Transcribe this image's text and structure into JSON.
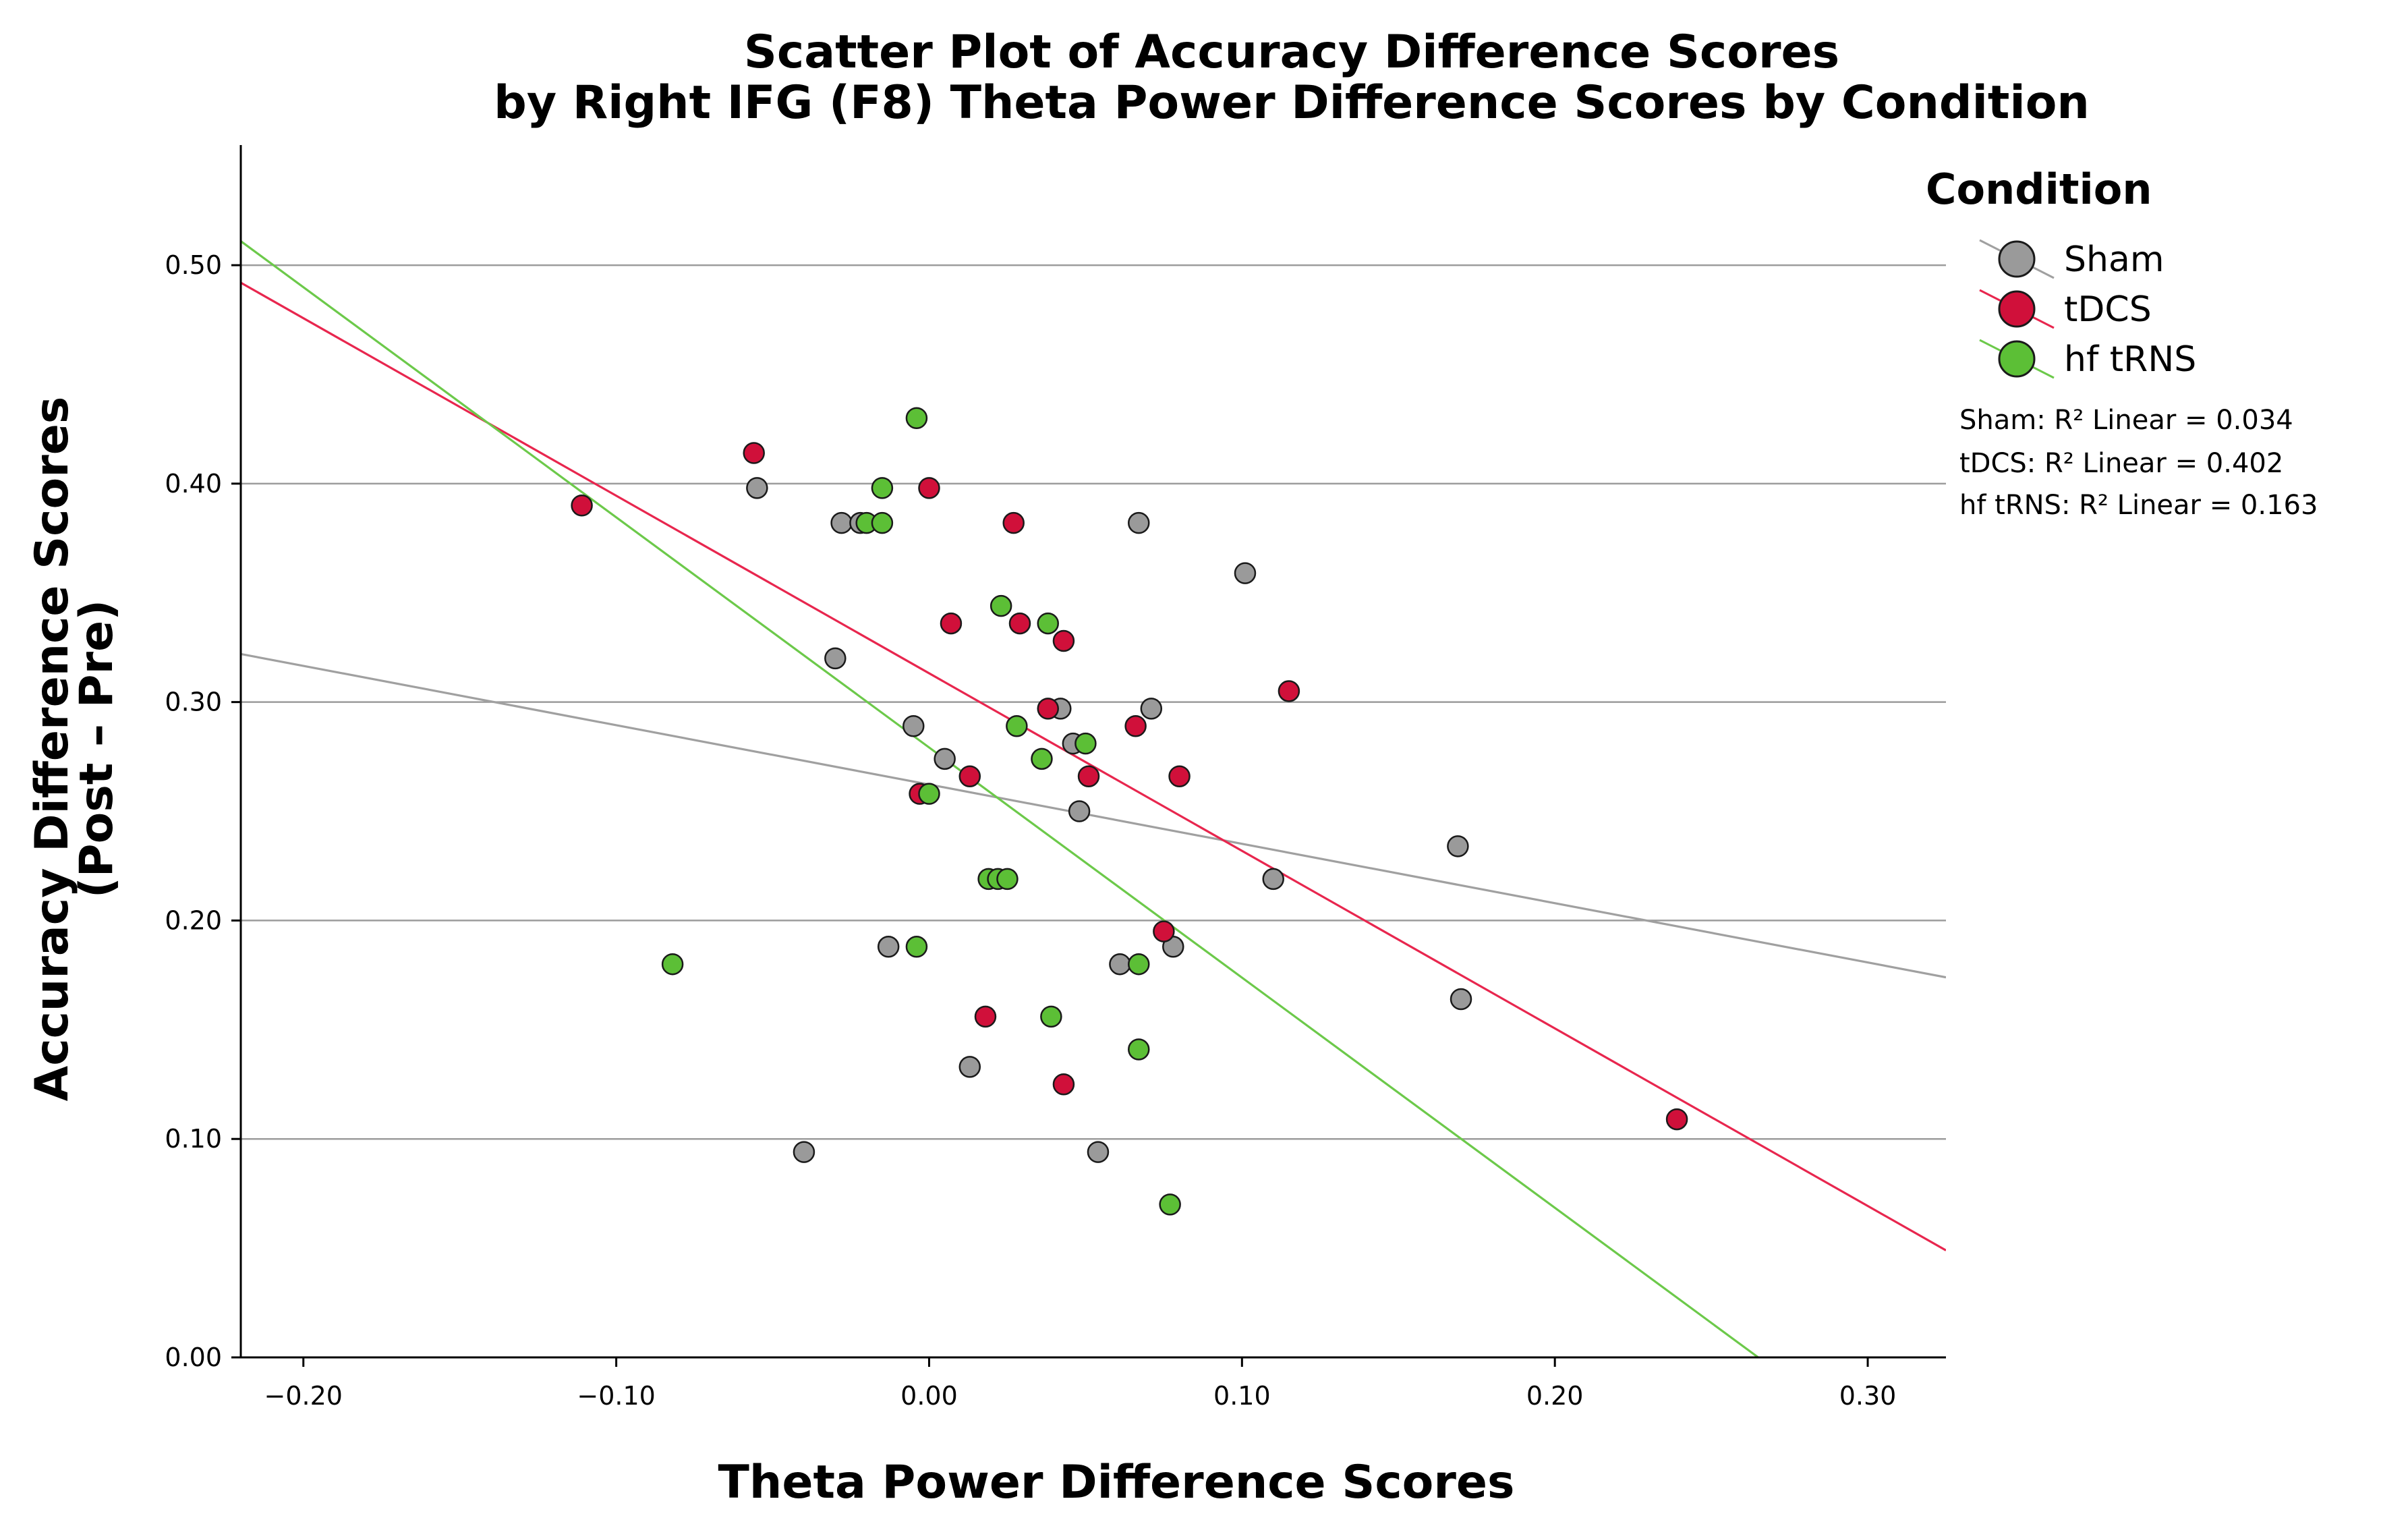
{
  "chart_data": {
    "type": "scatter",
    "title": [
      "Scatter Plot of Accuracy Difference Scores",
      "by Right IFG (F8) Theta Power Difference Scores by Condition"
    ],
    "xlabel": "Theta Power Difference Scores",
    "ylabel": [
      "Accuracy Difference Scores",
      "(Post – Pre)"
    ],
    "xlim": [
      -0.22,
      0.325
    ],
    "ylim": [
      0.0,
      0.555
    ],
    "xticks": [
      -0.2,
      -0.1,
      0.0,
      0.1,
      0.2,
      0.3
    ],
    "xtick_labels": [
      "−0.20",
      "−0.10",
      "0.00",
      "0.10",
      "0.20",
      "0.30"
    ],
    "yticks": [
      0.0,
      0.1,
      0.2,
      0.3,
      0.4,
      0.5
    ],
    "ytick_labels": [
      "0.00",
      "0.10",
      "0.20",
      "0.30",
      "0.40",
      "0.50"
    ],
    "gridlines": "horizontal",
    "legend": {
      "title": "Condition",
      "placement": "right",
      "r2_labels": [
        "Sham: R² Linear = 0.034",
        "tDCS: R² Linear = 0.402",
        "hf tRNS: R² Linear = 0.163"
      ]
    },
    "series": [
      {
        "name": "Sham",
        "color": "#9a9a9a",
        "line_color": "#a0a0a0",
        "fit": {
          "x": [
            -0.22,
            0.325
          ],
          "y": [
            0.322,
            0.174
          ]
        },
        "points": [
          [
            -0.055,
            0.398
          ],
          [
            -0.028,
            0.382
          ],
          [
            -0.022,
            0.382
          ],
          [
            -0.03,
            0.32
          ],
          [
            -0.04,
            0.094
          ],
          [
            -0.013,
            0.188
          ],
          [
            -0.005,
            0.289
          ],
          [
            0.005,
            0.274
          ],
          [
            0.013,
            0.133
          ],
          [
            0.042,
            0.297
          ],
          [
            0.046,
            0.281
          ],
          [
            0.048,
            0.25
          ],
          [
            0.054,
            0.094
          ],
          [
            0.061,
            0.18
          ],
          [
            0.067,
            0.382
          ],
          [
            0.071,
            0.297
          ],
          [
            0.078,
            0.188
          ],
          [
            0.101,
            0.359
          ],
          [
            0.11,
            0.219
          ],
          [
            0.169,
            0.234
          ],
          [
            0.17,
            0.164
          ]
        ]
      },
      {
        "name": "tDCS",
        "color": "#d0103a",
        "line_color": "#e8264e",
        "fit": {
          "x": [
            -0.22,
            0.325
          ],
          "y": [
            0.492,
            0.049
          ]
        },
        "points": [
          [
            -0.111,
            0.39
          ],
          [
            -0.056,
            0.414
          ],
          [
            0.0,
            0.398
          ],
          [
            0.007,
            0.336
          ],
          [
            -0.003,
            0.258
          ],
          [
            0.013,
            0.266
          ],
          [
            0.018,
            0.156
          ],
          [
            0.027,
            0.382
          ],
          [
            0.029,
            0.336
          ],
          [
            0.038,
            0.297
          ],
          [
            0.043,
            0.328
          ],
          [
            0.043,
            0.125
          ],
          [
            0.051,
            0.266
          ],
          [
            0.066,
            0.289
          ],
          [
            0.075,
            0.195
          ],
          [
            0.08,
            0.266
          ],
          [
            0.115,
            0.305
          ],
          [
            0.239,
            0.109
          ]
        ]
      },
      {
        "name": "hf tRNS",
        "color": "#5cbf36",
        "line_color": "#6cc94a",
        "fit": {
          "x": [
            -0.22,
            0.265
          ],
          "y": [
            0.511,
            0.0
          ]
        },
        "points": [
          [
            -0.004,
            0.43
          ],
          [
            -0.015,
            0.398
          ],
          [
            -0.02,
            0.382
          ],
          [
            -0.015,
            0.382
          ],
          [
            -0.082,
            0.18
          ],
          [
            0.0,
            0.258
          ],
          [
            -0.004,
            0.188
          ],
          [
            0.019,
            0.219
          ],
          [
            0.022,
            0.219
          ],
          [
            0.025,
            0.219
          ],
          [
            0.023,
            0.344
          ],
          [
            0.038,
            0.336
          ],
          [
            0.028,
            0.289
          ],
          [
            0.036,
            0.274
          ],
          [
            0.05,
            0.281
          ],
          [
            0.039,
            0.156
          ],
          [
            0.067,
            0.18
          ],
          [
            0.067,
            0.141
          ],
          [
            0.077,
            0.07
          ]
        ]
      }
    ]
  }
}
